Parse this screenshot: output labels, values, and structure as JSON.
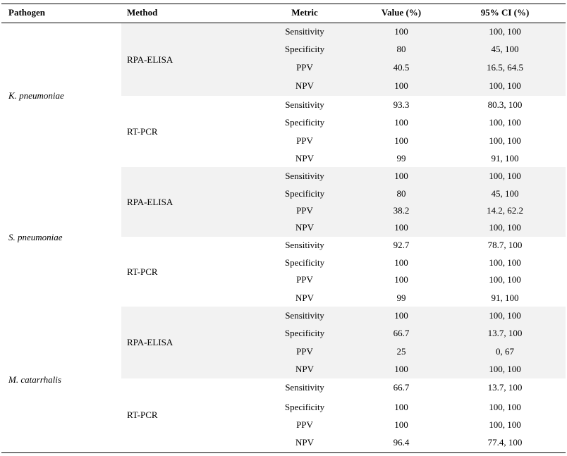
{
  "headers": {
    "pathogen": "Pathogen",
    "method": "Method",
    "metric": "Metric",
    "value": "Value (%)",
    "ci": "95% CI (%)"
  },
  "groups": [
    {
      "pathogen": "K. pneumoniae",
      "methods": [
        {
          "method": "RPA-ELISA",
          "rows": [
            {
              "metric": "Sensitivity",
              "value": "100",
              "ci": "100, 100"
            },
            {
              "metric": "Specificity",
              "value": "80",
              "ci": "45, 100"
            },
            {
              "metric": "PPV",
              "value": "40.5",
              "ci": "16.5, 64.5"
            },
            {
              "metric": "NPV",
              "value": "100",
              "ci": "100, 100"
            }
          ]
        },
        {
          "method": "RT-PCR",
          "rows": [
            {
              "metric": "Sensitivity",
              "value": "93.3",
              "ci": "80.3, 100"
            },
            {
              "metric": "Specificity",
              "value": "100",
              "ci": "100, 100"
            },
            {
              "metric": "PPV",
              "value": "100",
              "ci": "100, 100"
            },
            {
              "metric": "NPV",
              "value": "99",
              "ci": "91, 100"
            }
          ]
        }
      ]
    },
    {
      "pathogen": "S. pneumoniae",
      "methods": [
        {
          "method": "RPA-ELISA",
          "rows": [
            {
              "metric": "Sensitivity",
              "value": "100",
              "ci": "100, 100"
            },
            {
              "metric": "Specificity",
              "value": "80",
              "ci": "45, 100"
            },
            {
              "metric": "PPV",
              "value": "38.2",
              "ci": "14.2, 62.2"
            },
            {
              "metric": "NPV",
              "value": "100",
              "ci": "100, 100"
            }
          ]
        },
        {
          "method": "RT-PCR",
          "rows": [
            {
              "metric": "Sensitivity",
              "value": "92.7",
              "ci": "78.7, 100"
            },
            {
              "metric": "Specificity",
              "value": "100",
              "ci": "100, 100"
            },
            {
              "metric": "PPV",
              "value": "100",
              "ci": "100, 100"
            },
            {
              "metric": "NPV",
              "value": "99",
              "ci": "91, 100"
            }
          ]
        }
      ]
    },
    {
      "pathogen": "M. catarrhalis",
      "methods": [
        {
          "method": "RPA-ELISA",
          "rows": [
            {
              "metric": "Sensitivity",
              "value": "100",
              "ci": "100, 100"
            },
            {
              "metric": "Specificity",
              "value": "66.7",
              "ci": "13.7, 100"
            },
            {
              "metric": "PPV",
              "value": "25",
              "ci": "0, 67"
            },
            {
              "metric": "NPV",
              "value": "100",
              "ci": "100, 100"
            }
          ]
        },
        {
          "method": "RT-PCR",
          "rows": [
            {
              "metric": "Sensitivity",
              "value": "66.7",
              "ci": "13.7, 100"
            },
            {
              "metric": "Specificity",
              "value": "100",
              "ci": "100, 100"
            },
            {
              "metric": "PPV",
              "value": "100",
              "ci": "100, 100"
            },
            {
              "metric": "NPV",
              "value": "96.4",
              "ci": "77.4, 100"
            }
          ]
        }
      ]
    }
  ]
}
